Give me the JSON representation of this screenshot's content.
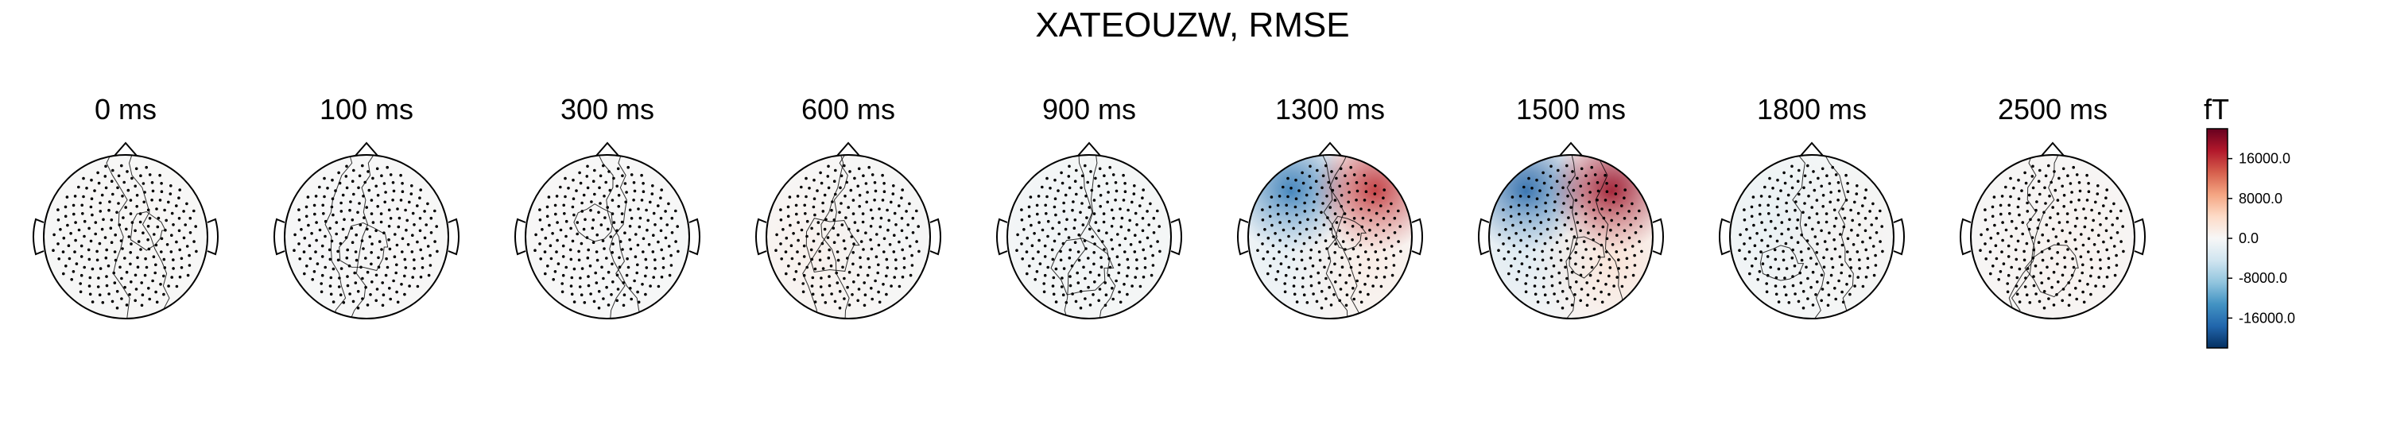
{
  "title": "XATEOUZW, RMSE",
  "chart_data": {
    "type": "heatmap",
    "title": "XATEOUZW, RMSE",
    "panels": [
      {
        "label": "0 ms",
        "blobs": [
          {
            "dx": 0.0,
            "dy": 0.0,
            "v": 900
          },
          {
            "dx": -0.4,
            "dy": 0.3,
            "v": -600
          }
        ]
      },
      {
        "label": "100 ms",
        "blobs": [
          {
            "dx": -0.3,
            "dy": 0.1,
            "v": -700
          },
          {
            "dx": 0.4,
            "dy": 0.2,
            "v": 500
          }
        ]
      },
      {
        "label": "300 ms",
        "blobs": [
          {
            "dx": 0.3,
            "dy": 0.2,
            "v": -600
          },
          {
            "dx": -0.4,
            "dy": -0.2,
            "v": 400
          }
        ]
      },
      {
        "label": "600 ms",
        "blobs": [
          {
            "dx": -0.4,
            "dy": 0.2,
            "v": 2600
          },
          {
            "dx": 0.4,
            "dy": -0.1,
            "v": -1500
          }
        ]
      },
      {
        "label": "900 ms",
        "blobs": [
          {
            "dx": -0.3,
            "dy": -0.1,
            "v": -1600
          },
          {
            "dx": 0.4,
            "dy": 0.3,
            "v": -500
          }
        ]
      },
      {
        "label": "1300 ms",
        "blobs": [
          {
            "dx": -0.48,
            "dy": -0.55,
            "v": -16000
          },
          {
            "dx": 0.55,
            "dy": -0.55,
            "v": 16000
          },
          {
            "dx": -0.6,
            "dy": 0.2,
            "v": -4000
          },
          {
            "dx": 0.5,
            "dy": 0.3,
            "v": 3500
          }
        ]
      },
      {
        "label": "1500 ms",
        "blobs": [
          {
            "dx": -0.55,
            "dy": -0.55,
            "v": -18000
          },
          {
            "dx": 0.5,
            "dy": -0.55,
            "v": 19000
          },
          {
            "dx": -0.6,
            "dy": 0.2,
            "v": -5000
          },
          {
            "dx": 0.55,
            "dy": 0.3,
            "v": 5000
          }
        ]
      },
      {
        "label": "1800 ms",
        "blobs": [
          {
            "dx": -0.4,
            "dy": -0.2,
            "v": -3500
          },
          {
            "dx": 0.4,
            "dy": 0.0,
            "v": 1500
          }
        ]
      },
      {
        "label": "2500 ms",
        "blobs": [
          {
            "dx": 0.1,
            "dy": 0.1,
            "v": 2000
          },
          {
            "dx": -0.5,
            "dy": -0.3,
            "v": -500
          }
        ]
      }
    ],
    "colorbar": {
      "unit": "fT",
      "ticks": [
        16000.0,
        8000.0,
        0.0,
        -8000.0,
        -16000.0
      ],
      "tick_labels": [
        "16000.0",
        "8000.0",
        "0.0",
        "-8000.0",
        "-16000.0"
      ],
      "range": [
        -22000,
        22000
      ],
      "colormap": [
        "#053061",
        "#2166ac",
        "#4393c3",
        "#92c5de",
        "#d1e5f0",
        "#f7f7f7",
        "#fddbc7",
        "#f4a582",
        "#d6604d",
        "#b2182b",
        "#67001f"
      ]
    }
  }
}
